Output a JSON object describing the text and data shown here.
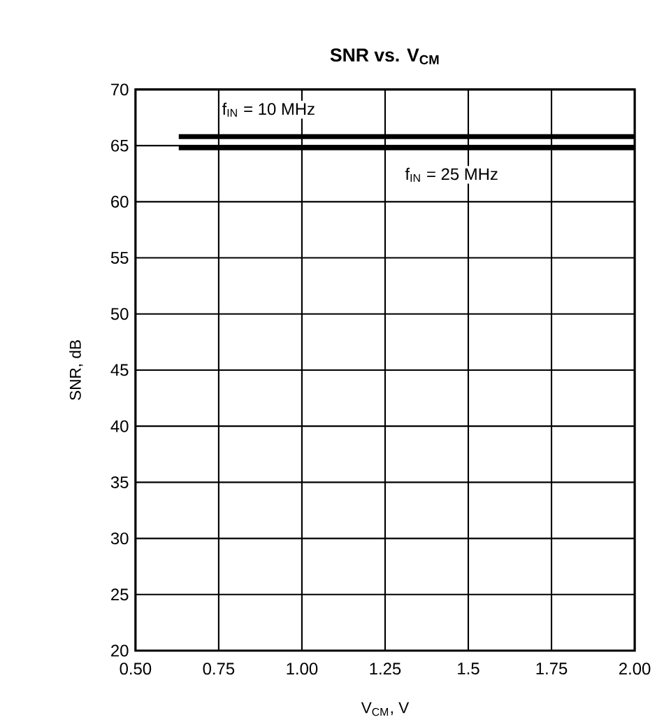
{
  "chart_data": {
    "type": "line",
    "title": "**SNR vs. V$_{CM}$**",
    "xlabel": "V$_{CM}$, V",
    "ylabel": "SNR, dB",
    "x": [
      0.63,
      2.0
    ],
    "series": [
      {
        "name": "f$_{IN}$ = 10 MHz",
        "color": "#000000",
        "values": [
          65.8,
          65.8
        ]
      },
      {
        "name": "f$_{IN}$ = 25 MHz",
        "color": "#000000",
        "values": [
          64.8,
          64.8
        ]
      }
    ],
    "xlim": [
      0.5,
      2.0
    ],
    "ylim": [
      20,
      70
    ],
    "xticks": [
      {
        "value": 0.5,
        "label": "0.50"
      },
      {
        "value": 0.75,
        "label": "0.75"
      },
      {
        "value": 1.0,
        "label": "1.00"
      },
      {
        "value": 1.25,
        "label": "1.25"
      },
      1.5,
      1.75,
      {
        "value": 2.0,
        "label": "2.00"
      }
    ],
    "yticks": [
      20,
      25,
      30,
      35,
      40,
      45,
      50,
      55,
      60,
      65,
      70
    ],
    "grid": true,
    "marker": "none",
    "line_style": "solid"
  }
}
